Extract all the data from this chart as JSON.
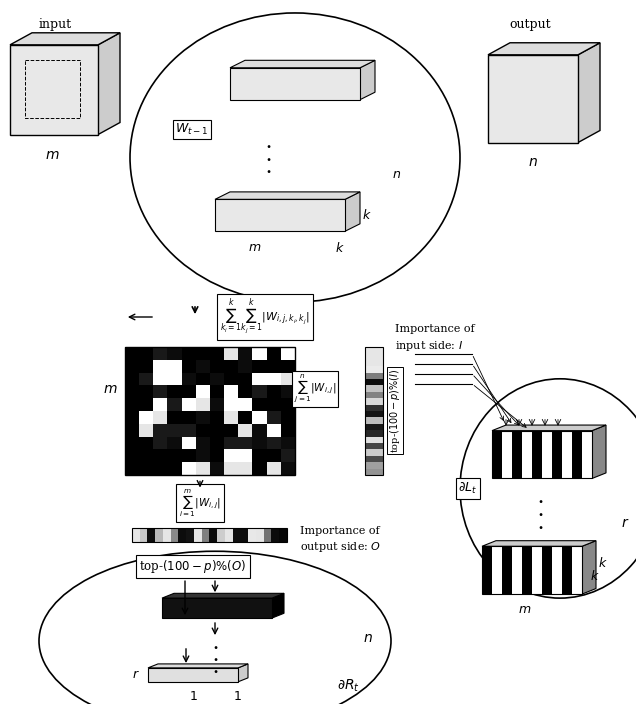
{
  "bg_color": "#ffffff",
  "figsize": [
    6.36,
    7.06
  ],
  "dpi": 100,
  "input_label": "input",
  "output_label": "output"
}
